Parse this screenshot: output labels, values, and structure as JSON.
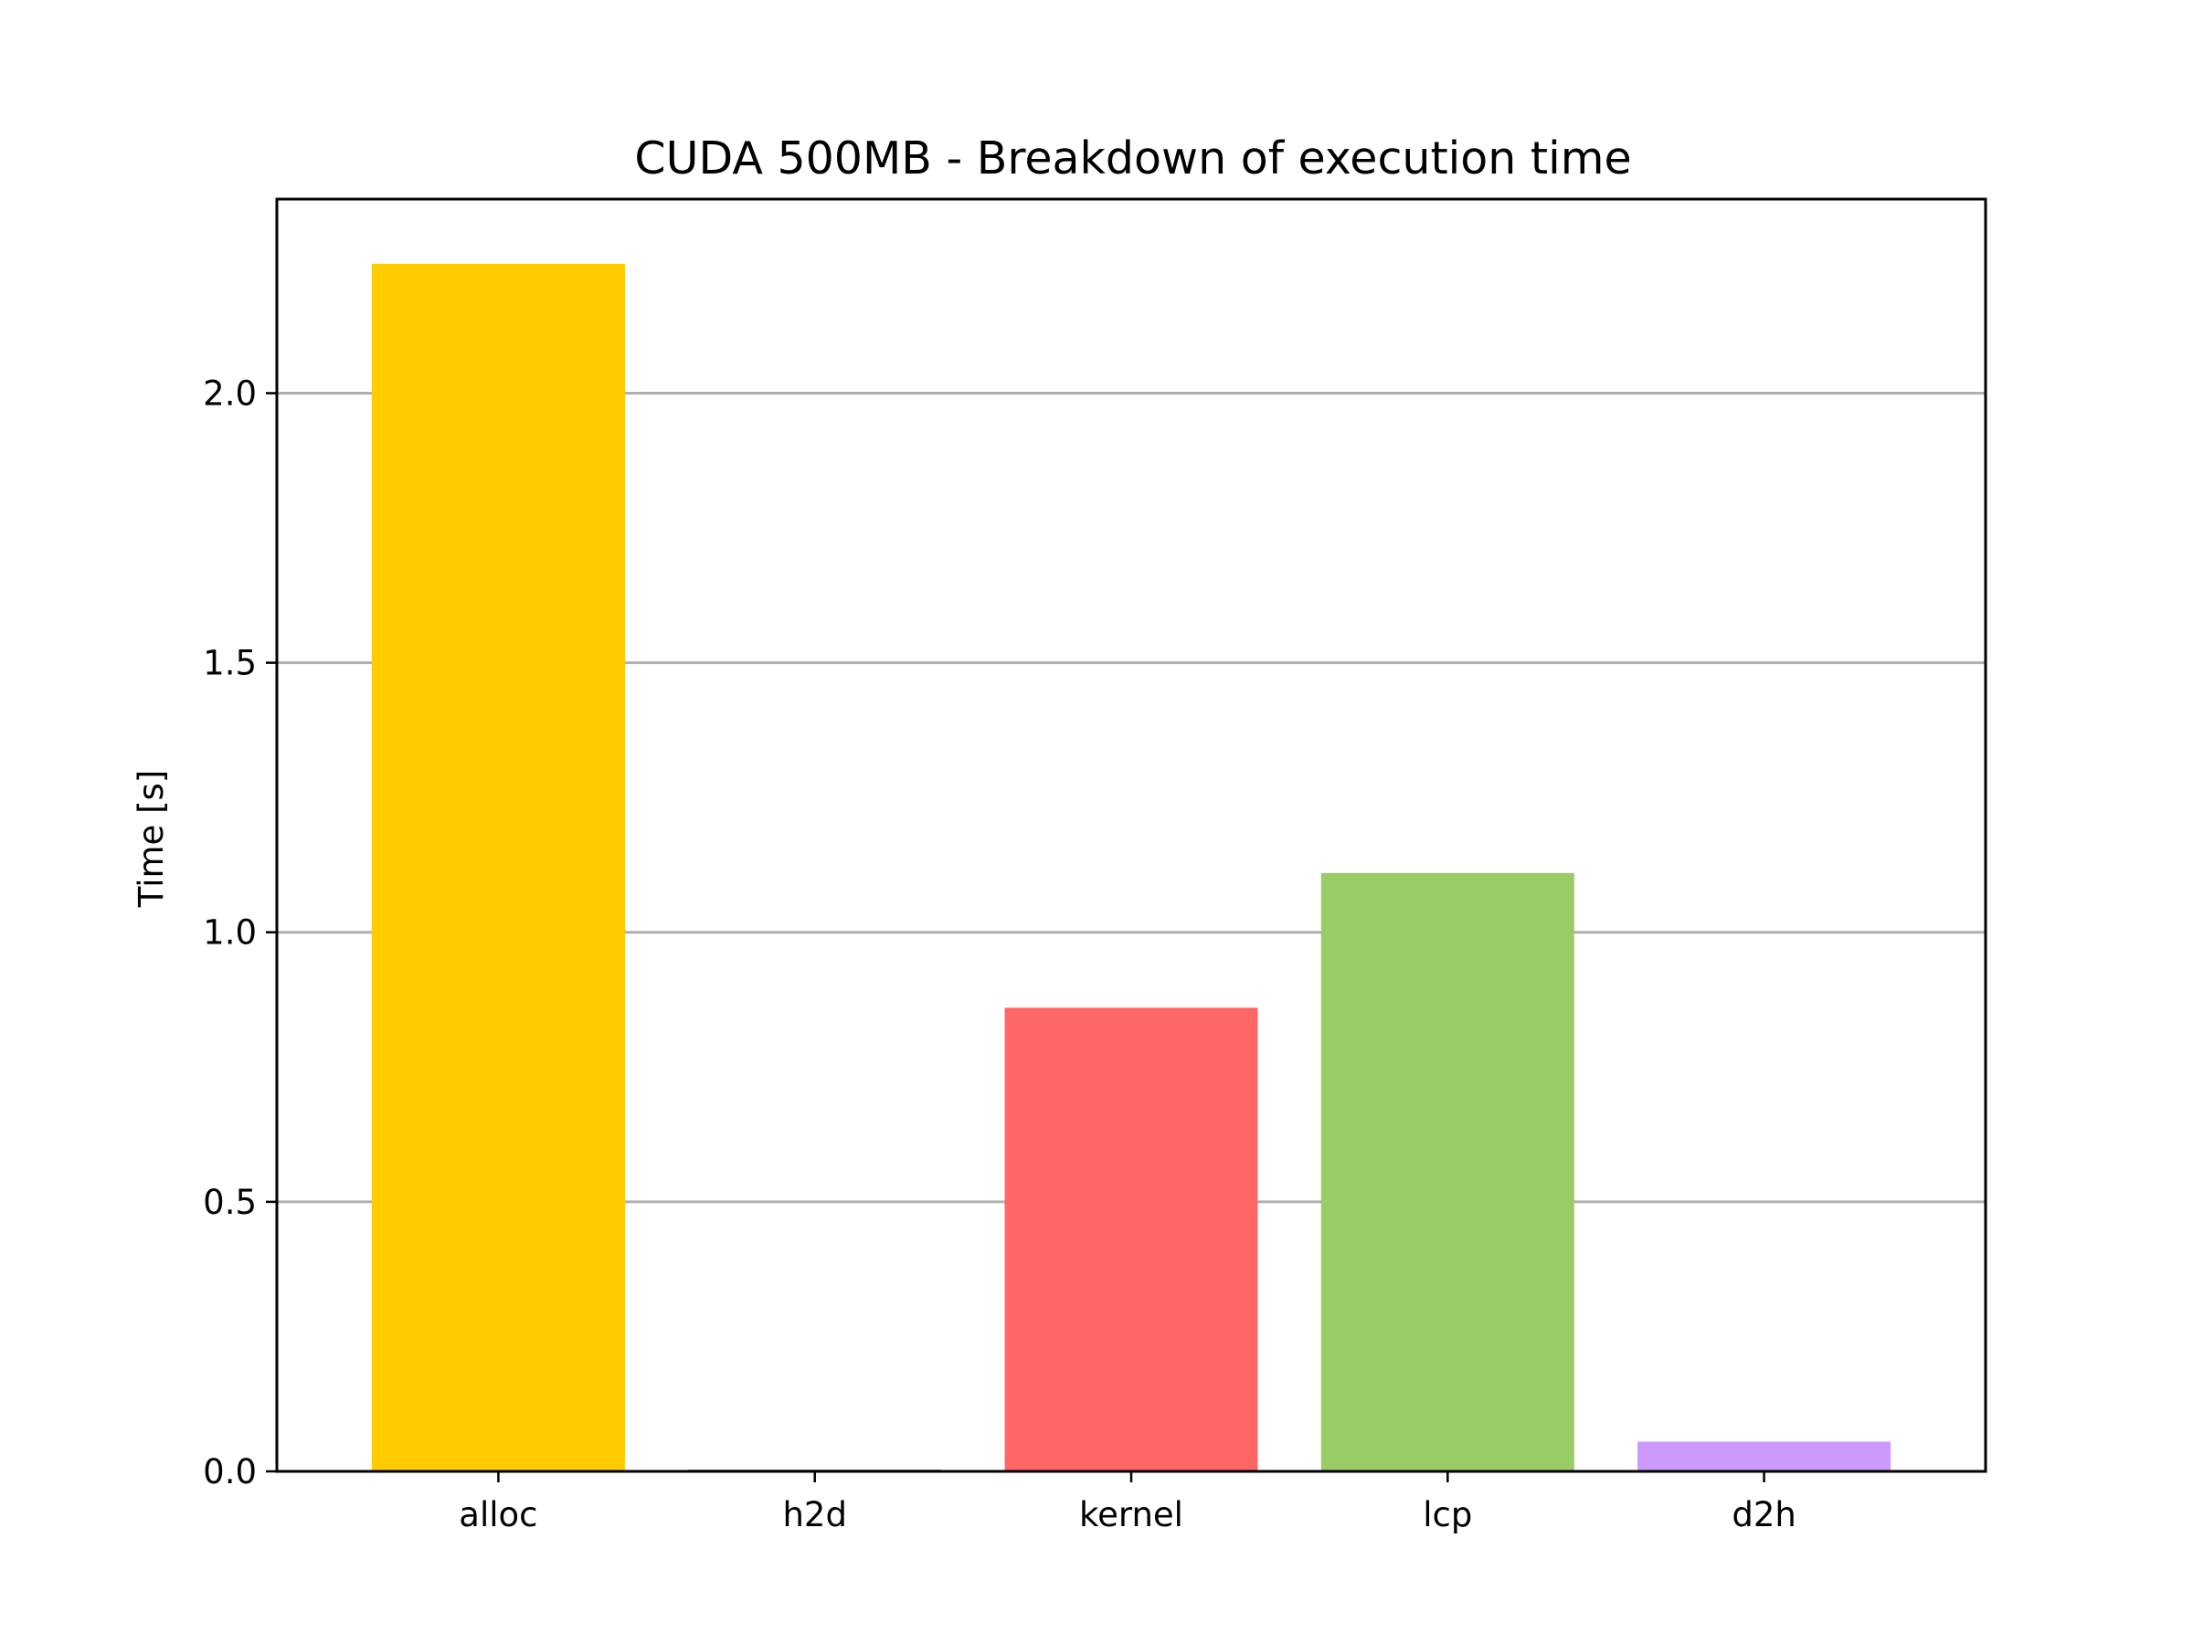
{
  "chart_data": {
    "type": "bar",
    "title": "CUDA 500MB - Breakdown of execution time",
    "xlabel": "",
    "ylabel": "Time [s]",
    "ylim": [
      0,
      2.36
    ],
    "yticks": [
      "0.0",
      "0.5",
      "1.0",
      "1.5",
      "2.0"
    ],
    "grid": "horizontal",
    "categories": [
      "alloc",
      "h2d",
      "kernel",
      "lcp",
      "d2h"
    ],
    "values": [
      2.24,
      0.003,
      0.86,
      1.11,
      0.055
    ],
    "colors": [
      "#ffcc00",
      "#333333",
      "#ff6666",
      "#99cc66",
      "#cc99ff"
    ]
  }
}
